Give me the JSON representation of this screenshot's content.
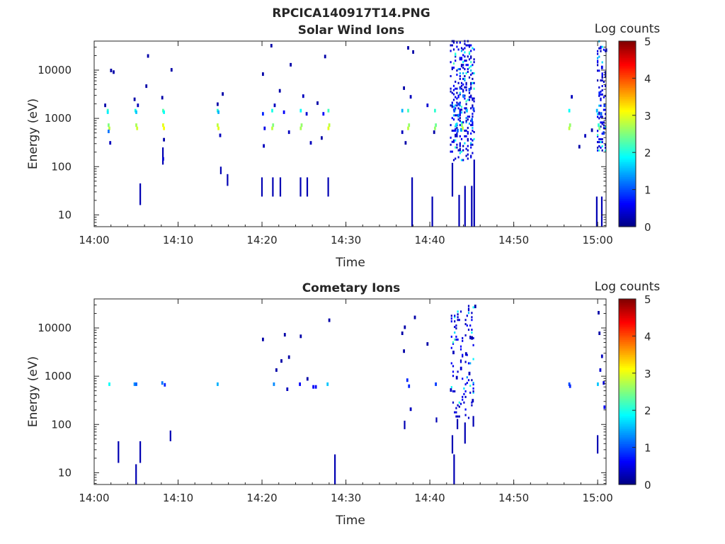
{
  "figure": {
    "title": "RPCICA140917T14.PNG",
    "background": "#ffffff"
  },
  "chart_data": [
    {
      "type": "heatmap",
      "title": "Solar Wind Ions",
      "xlabel": "Time",
      "ylabel": "Energy (eV)",
      "x_ticks": [
        "14:00",
        "14:10",
        "14:20",
        "14:30",
        "14:40",
        "14:50",
        "15:00"
      ],
      "xlim_minutes": [
        0,
        61
      ],
      "y_scale": "log",
      "ylim": [
        5.7,
        40000
      ],
      "y_ticks": [
        10,
        100,
        1000,
        10000
      ],
      "y_tick_labels": [
        "10",
        "100",
        "1000",
        "10000"
      ],
      "colorbar": {
        "label": "Log counts",
        "range": [
          0,
          5
        ],
        "ticks": [
          "0",
          "1",
          "2",
          "3",
          "4",
          "5"
        ],
        "colormap": "jet"
      },
      "cells": [
        [
          1.5,
          1400,
          2.2
        ],
        [
          1.5,
          1300,
          1.8
        ],
        [
          1.6,
          700,
          2.5
        ],
        [
          1.7,
          600,
          2.8
        ],
        [
          1.6,
          520,
          1.2
        ],
        [
          1.8,
          300,
          0.3
        ],
        [
          1.2,
          1800,
          0.2
        ],
        [
          1.9,
          9500,
          0.2
        ],
        [
          2.2,
          8800,
          0.2
        ],
        [
          4.8,
          1400,
          2.0
        ],
        [
          4.9,
          1300,
          1.6
        ],
        [
          4.9,
          700,
          2.7
        ],
        [
          5.0,
          600,
          2.9
        ],
        [
          4.7,
          2400,
          0.2
        ],
        [
          5.1,
          1800,
          0.3
        ],
        [
          6.3,
          19000,
          0.2
        ],
        [
          6.1,
          4500,
          0.2
        ],
        [
          8.1,
          1400,
          2.3
        ],
        [
          8.2,
          1300,
          1.9
        ],
        [
          8.1,
          700,
          3.0
        ],
        [
          8.2,
          600,
          3.1
        ],
        [
          8.0,
          2600,
          0.2
        ],
        [
          8.2,
          350,
          0.2
        ],
        [
          8.1,
          140,
          0.4
        ],
        [
          9.1,
          9800,
          0.2
        ],
        [
          14.6,
          1400,
          2.1
        ],
        [
          14.7,
          1300,
          1.5
        ],
        [
          14.6,
          700,
          2.8
        ],
        [
          14.7,
          600,
          3.0
        ],
        [
          15.2,
          3100,
          0.2
        ],
        [
          14.9,
          430,
          0.3
        ],
        [
          14.6,
          1900,
          0.2
        ],
        [
          20.0,
          1200,
          0.8
        ],
        [
          21.1,
          1400,
          2.0
        ],
        [
          21.2,
          700,
          2.5
        ],
        [
          21.1,
          600,
          2.8
        ],
        [
          21.4,
          1800,
          0.3
        ],
        [
          20.2,
          600,
          0.5
        ],
        [
          20.1,
          260,
          0.3
        ],
        [
          20.0,
          8000,
          0.2
        ],
        [
          21.0,
          31000,
          0.2
        ],
        [
          22.0,
          3600,
          0.2
        ],
        [
          22.5,
          1300,
          0.6
        ],
        [
          23.1,
          500,
          0.3
        ],
        [
          23.3,
          12500,
          0.2
        ],
        [
          24.5,
          1400,
          1.9
        ],
        [
          24.6,
          700,
          2.6
        ],
        [
          24.5,
          600,
          2.7
        ],
        [
          25.2,
          1200,
          0.4
        ],
        [
          24.8,
          2800,
          0.3
        ],
        [
          25.7,
          300,
          0.3
        ],
        [
          26.5,
          2000,
          0.2
        ],
        [
          27.4,
          18500,
          0.2
        ],
        [
          27.8,
          1400,
          2.2
        ],
        [
          27.9,
          700,
          2.8
        ],
        [
          27.8,
          600,
          3.0
        ],
        [
          27.2,
          1200,
          0.6
        ],
        [
          27.0,
          380,
          0.2
        ],
        [
          36.6,
          1400,
          1.5
        ],
        [
          37.3,
          1400,
          2.2
        ],
        [
          37.4,
          700,
          2.6
        ],
        [
          37.3,
          600,
          2.8
        ],
        [
          36.8,
          4100,
          0.2
        ],
        [
          37.3,
          28000,
          0.2
        ],
        [
          37.9,
          23000,
          0.2
        ],
        [
          37.6,
          2700,
          0.3
        ],
        [
          36.6,
          500,
          0.3
        ],
        [
          37.0,
          300,
          0.2
        ],
        [
          40.5,
          1400,
          2.1
        ],
        [
          40.6,
          700,
          2.4
        ],
        [
          40.5,
          600,
          2.6
        ],
        [
          39.6,
          1800,
          0.4
        ],
        [
          40.4,
          500,
          0.2
        ],
        [
          42.8,
          1400,
          1.0
        ],
        [
          43.0,
          700,
          1.8
        ],
        [
          43.3,
          1100,
          1.3
        ],
        [
          43.7,
          700,
          2.5
        ],
        [
          43.8,
          600,
          2.9
        ],
        [
          43.4,
          1900,
          1.0
        ],
        [
          43.9,
          2800,
          1.2
        ],
        [
          44.3,
          1400,
          1.6
        ],
        [
          44.6,
          3800,
          1.0
        ],
        [
          44.9,
          900,
          1.1
        ],
        [
          45.1,
          1500,
          0.9
        ],
        [
          43.6,
          560,
          1.4
        ],
        [
          43.2,
          540,
          1.1
        ],
        [
          56.5,
          1400,
          1.9
        ],
        [
          56.6,
          700,
          2.6
        ],
        [
          56.5,
          600,
          2.8
        ],
        [
          56.8,
          2700,
          0.3
        ],
        [
          57.7,
          250,
          0.2
        ],
        [
          58.4,
          420,
          0.3
        ],
        [
          59.2,
          550,
          0.2
        ],
        [
          59.8,
          1400,
          1.5
        ],
        [
          60.0,
          700,
          2.1
        ],
        [
          60.1,
          600,
          2.5
        ],
        [
          60.7,
          1800,
          0.9
        ],
        [
          60.4,
          11000,
          0.5
        ],
        [
          60.9,
          25000,
          0.5
        ],
        [
          60.1,
          3200,
          0.8
        ],
        [
          60.6,
          480,
          0.9
        ],
        [
          60.3,
          1200,
          1.1
        ]
      ],
      "dense_blocks": [
        [
          42.4,
          45.3,
          130,
          40000,
          0.2
        ],
        [
          59.9,
          61.0,
          180,
          40000,
          0.15
        ]
      ],
      "spikes": [
        [
          5.4,
          16,
          45
        ],
        [
          8.1,
          110,
          250
        ],
        [
          15.0,
          70,
          100
        ],
        [
          15.8,
          40,
          70
        ],
        [
          19.9,
          24,
          60
        ],
        [
          21.2,
          24,
          60
        ],
        [
          22.1,
          24,
          60
        ],
        [
          24.5,
          24,
          60
        ],
        [
          25.3,
          24,
          60
        ],
        [
          27.8,
          24,
          60
        ],
        [
          37.8,
          5.8,
          60
        ],
        [
          40.2,
          5.8,
          24
        ],
        [
          42.6,
          24,
          120
        ],
        [
          43.4,
          5.8,
          26
        ],
        [
          44.1,
          5.8,
          40
        ],
        [
          44.9,
          5.8,
          40
        ],
        [
          45.2,
          5.8,
          140
        ],
        [
          59.8,
          5.8,
          24
        ],
        [
          60.4,
          5.8,
          24
        ]
      ]
    },
    {
      "type": "heatmap",
      "title": "Cometary Ions",
      "xlabel": "Time",
      "ylabel": "Energy (eV)",
      "x_ticks": [
        "14:00",
        "14:10",
        "14:20",
        "14:30",
        "14:40",
        "14:50",
        "15:00"
      ],
      "xlim_minutes": [
        0,
        61
      ],
      "y_scale": "log",
      "ylim": [
        5.7,
        40000
      ],
      "y_ticks": [
        10,
        100,
        1000,
        10000
      ],
      "y_tick_labels": [
        "10",
        "100",
        "1000",
        "10000"
      ],
      "colorbar": {
        "label": "Log counts",
        "range": [
          0,
          5
        ],
        "ticks": [
          "0",
          "1",
          "2",
          "3",
          "4",
          "5"
        ],
        "colormap": "jet"
      },
      "cells": [
        [
          1.7,
          660,
          1.9
        ],
        [
          4.7,
          660,
          1.3
        ],
        [
          4.9,
          660,
          1.1
        ],
        [
          8.0,
          700,
          1.2
        ],
        [
          8.3,
          640,
          0.8
        ],
        [
          14.6,
          660,
          1.5
        ],
        [
          20.0,
          5600,
          0.2
        ],
        [
          21.3,
          660,
          1.3
        ],
        [
          21.6,
          1300,
          0.2
        ],
        [
          22.2,
          2000,
          0.2
        ],
        [
          22.6,
          7000,
          0.2
        ],
        [
          22.9,
          520,
          0.3
        ],
        [
          23.1,
          2400,
          0.2
        ],
        [
          24.4,
          660,
          0.6
        ],
        [
          24.5,
          6500,
          0.2
        ],
        [
          25.3,
          850,
          0.2
        ],
        [
          26.0,
          580,
          0.6
        ],
        [
          26.3,
          580,
          0.6
        ],
        [
          27.7,
          660,
          1.6
        ],
        [
          27.9,
          14000,
          0.2
        ],
        [
          36.6,
          7500,
          0.2
        ],
        [
          36.8,
          3200,
          0.2
        ],
        [
          36.9,
          10000,
          0.2
        ],
        [
          37.2,
          800,
          0.8
        ],
        [
          37.4,
          600,
          0.8
        ],
        [
          37.6,
          200,
          0.3
        ],
        [
          38.1,
          16000,
          0.2
        ],
        [
          39.6,
          4500,
          0.2
        ],
        [
          40.6,
          660,
          0.9
        ],
        [
          42.4,
          500,
          0.3
        ],
        [
          42.7,
          3000,
          0.3
        ],
        [
          43.1,
          900,
          0.3
        ],
        [
          43.6,
          1400,
          0.4
        ],
        [
          44.2,
          2800,
          0.3
        ],
        [
          44.6,
          1100,
          0.3
        ],
        [
          44.9,
          6000,
          0.2
        ],
        [
          45.0,
          300,
          0.3
        ],
        [
          45.3,
          27000,
          0.2
        ],
        [
          56.5,
          660,
          1.0
        ],
        [
          56.6,
          600,
          0.8
        ],
        [
          59.9,
          660,
          1.6
        ],
        [
          60.0,
          20000,
          0.2
        ],
        [
          60.4,
          2500,
          0.3
        ],
        [
          60.6,
          700,
          0.5
        ],
        [
          60.7,
          220,
          0.6
        ],
        [
          60.2,
          1300,
          0.4
        ],
        [
          60.1,
          7500,
          0.2
        ]
      ],
      "dense_blocks": [
        [
          42.5,
          45.3,
          130,
          30000,
          0.08
        ]
      ],
      "spikes": [
        [
          2.8,
          16,
          45
        ],
        [
          5.4,
          16,
          45
        ],
        [
          4.9,
          5.8,
          15
        ],
        [
          9.0,
          45,
          75
        ],
        [
          28.6,
          5.8,
          24
        ],
        [
          36.9,
          80,
          120
        ],
        [
          40.7,
          110,
          140
        ],
        [
          42.6,
          25,
          60
        ],
        [
          42.8,
          5.8,
          24
        ],
        [
          43.2,
          80,
          130
        ],
        [
          44.1,
          40,
          110
        ],
        [
          45.1,
          90,
          150
        ],
        [
          59.9,
          25,
          60
        ]
      ]
    }
  ]
}
